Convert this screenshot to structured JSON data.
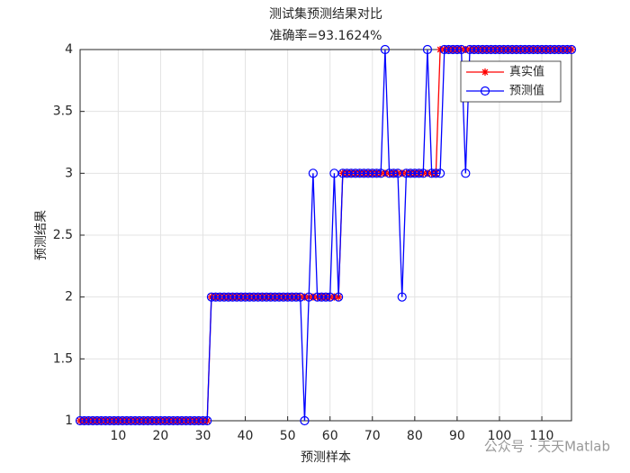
{
  "chart_data": {
    "type": "line",
    "title": "测试集预测结果对比",
    "subtitle": "准确率=93.1624%",
    "x_label": "预测样本",
    "y_label": "预测结果",
    "xlim": [
      1,
      117
    ],
    "ylim": [
      1,
      4
    ],
    "xticks": [
      10,
      20,
      30,
      40,
      50,
      60,
      70,
      80,
      90,
      100,
      110
    ],
    "yticks": [
      1,
      1.5,
      2,
      2.5,
      3,
      3.5,
      4
    ],
    "grid": true,
    "legend_position": "northeast",
    "series": [
      {
        "name": "真实值",
        "color": "#ff0000",
        "marker": "star",
        "values": [
          1,
          1,
          1,
          1,
          1,
          1,
          1,
          1,
          1,
          1,
          1,
          1,
          1,
          1,
          1,
          1,
          1,
          1,
          1,
          1,
          1,
          1,
          1,
          1,
          1,
          1,
          1,
          1,
          1,
          1,
          1,
          2,
          2,
          2,
          2,
          2,
          2,
          2,
          2,
          2,
          2,
          2,
          2,
          2,
          2,
          2,
          2,
          2,
          2,
          2,
          2,
          2,
          2,
          2,
          2,
          2,
          2,
          2,
          2,
          2,
          2,
          2,
          3,
          3,
          3,
          3,
          3,
          3,
          3,
          3,
          3,
          3,
          3,
          3,
          3,
          3,
          3,
          3,
          3,
          3,
          3,
          3,
          3,
          3,
          3,
          4,
          4,
          4,
          4,
          4,
          4,
          4,
          4,
          4,
          4,
          4,
          4,
          4,
          4,
          4,
          4,
          4,
          4,
          4,
          4,
          4,
          4,
          4,
          4,
          4,
          4,
          4,
          4,
          4,
          4,
          4,
          4
        ]
      },
      {
        "name": "预测值",
        "color": "#0000ff",
        "marker": "circle",
        "values": [
          1,
          1,
          1,
          1,
          1,
          1,
          1,
          1,
          1,
          1,
          1,
          1,
          1,
          1,
          1,
          1,
          1,
          1,
          1,
          1,
          1,
          1,
          1,
          1,
          1,
          1,
          1,
          1,
          1,
          1,
          1,
          2,
          2,
          2,
          2,
          2,
          2,
          2,
          2,
          2,
          2,
          2,
          2,
          2,
          2,
          2,
          2,
          2,
          2,
          2,
          2,
          2,
          2,
          1,
          2,
          3,
          2,
          2,
          2,
          2,
          3,
          2,
          3,
          3,
          3,
          3,
          3,
          3,
          3,
          3,
          3,
          3,
          4,
          3,
          3,
          3,
          2,
          3,
          3,
          3,
          3,
          3,
          4,
          3,
          3,
          3,
          4,
          4,
          4,
          4,
          4,
          3,
          4,
          4,
          4,
          4,
          4,
          4,
          4,
          4,
          4,
          4,
          4,
          4,
          4,
          4,
          4,
          4,
          4,
          4,
          4,
          4,
          4,
          4,
          4,
          4,
          4
        ]
      }
    ],
    "watermark": "公众号 · 天天Matlab"
  }
}
